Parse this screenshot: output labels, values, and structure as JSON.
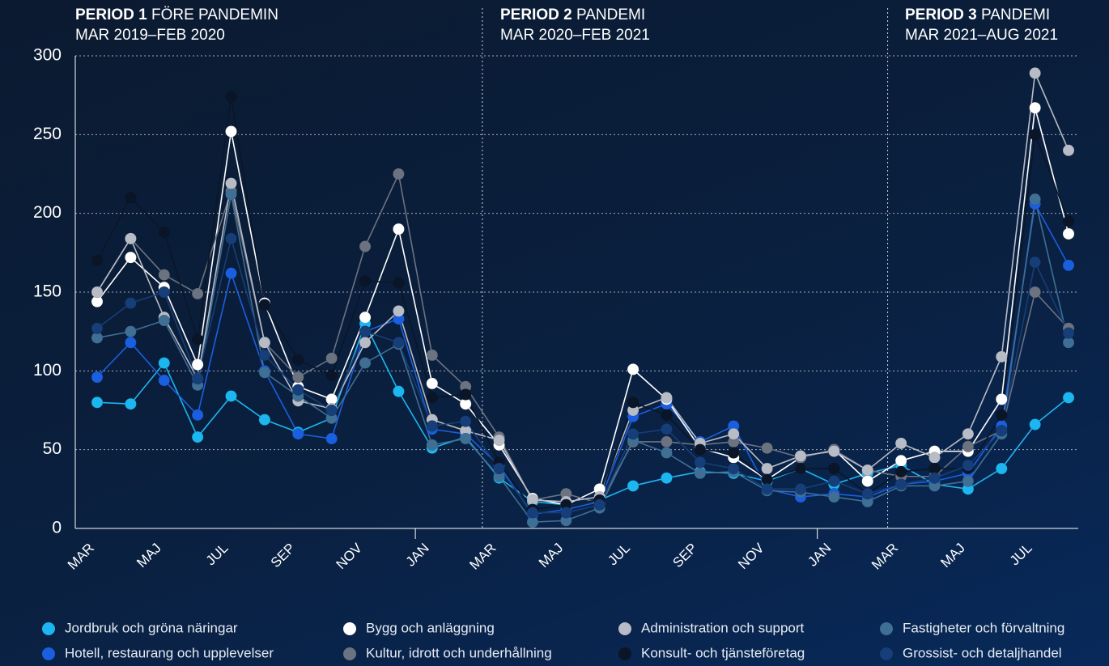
{
  "chart_data": {
    "type": "line",
    "annotations": [
      {
        "label": "PERIOD 1",
        "name": "FÖRE PANDEMIN",
        "range": "MAR 2019–FEB 2020"
      },
      {
        "label": "PERIOD 2",
        "name": "PANDEMI",
        "range": "MAR 2020–FEB 2021"
      },
      {
        "label": "PERIOD 3",
        "name": "PANDEMI",
        "range": "MAR 2021–AUG 2021"
      }
    ],
    "categories": [
      "MAR",
      null,
      "MAJ",
      null,
      "JUL",
      null,
      "SEP",
      null,
      "NOV",
      null,
      "JAN",
      null,
      "MAR",
      null,
      "MAJ",
      null,
      "JUL",
      null,
      "SEP",
      null,
      "NOV",
      null,
      "JAN",
      null,
      "MAR",
      null,
      "MAJ",
      null,
      "JUL",
      null
    ],
    "series": [
      {
        "name": "Jordbruk och gröna näringar",
        "color": "#1cb6f0",
        "values": [
          80,
          79,
          105,
          58,
          84,
          69,
          61,
          70,
          130,
          87,
          51,
          58,
          32,
          17,
          15,
          18,
          27,
          32,
          36,
          35,
          30,
          38,
          28,
          35,
          40,
          28,
          25,
          38,
          66,
          83
        ]
      },
      {
        "name": "Hotell, restaurang och upplevelser",
        "color": "#1a5fe0",
        "values": [
          96,
          118,
          94,
          72,
          162,
          100,
          60,
          57,
          125,
          133,
          63,
          60,
          40,
          9,
          12,
          17,
          71,
          79,
          55,
          65,
          25,
          20,
          22,
          20,
          28,
          30,
          35,
          65,
          206,
          167
        ]
      },
      {
        "name": "Bygg och anläggning",
        "color": "#ffffff",
        "values": [
          144,
          172,
          153,
          104,
          252,
          143,
          90,
          82,
          134,
          190,
          92,
          79,
          53,
          19,
          15,
          25,
          101,
          82,
          51,
          45,
          31,
          45,
          50,
          30,
          43,
          49,
          49,
          82,
          267,
          187
        ]
      },
      {
        "name": "Kultur, idrott och underhållning",
        "color": "#6b7280",
        "values": [
          150,
          184,
          161,
          149,
          214,
          118,
          96,
          108,
          179,
          225,
          110,
          90,
          58,
          18,
          22,
          16,
          55,
          55,
          53,
          55,
          51,
          45,
          50,
          37,
          33,
          33,
          52,
          62,
          150,
          127
        ]
      },
      {
        "name": "Administration och support",
        "color": "#b8bcc6",
        "values": [
          150,
          184,
          134,
          95,
          219,
          118,
          81,
          76,
          118,
          138,
          69,
          62,
          56,
          18,
          17,
          20,
          75,
          83,
          54,
          60,
          38,
          46,
          49,
          37,
          54,
          45,
          60,
          109,
          289,
          240
        ]
      },
      {
        "name": "Konsult- och tjänsteföretag",
        "color": "#0a1628",
        "values": [
          170,
          210,
          188,
          120,
          274,
          142,
          107,
          97,
          157,
          156,
          83,
          85,
          42,
          12,
          15,
          18,
          80,
          72,
          50,
          48,
          31,
          38,
          38,
          22,
          36,
          38,
          38,
          72,
          250,
          195
        ]
      },
      {
        "name": "Fastigheter och förvaltning",
        "color": "#3f6f95",
        "values": [
          121,
          125,
          132,
          91,
          212,
          99,
          84,
          70,
          105,
          117,
          53,
          57,
          33,
          4,
          5,
          13,
          56,
          48,
          35,
          36,
          24,
          23,
          20,
          17,
          27,
          27,
          30,
          60,
          209,
          118
        ]
      },
      {
        "name": "Grossist- och detaljhandel",
        "color": "#163e78",
        "values": [
          127,
          143,
          150,
          95,
          184,
          110,
          88,
          75,
          125,
          118,
          65,
          68,
          38,
          10,
          10,
          15,
          60,
          63,
          42,
          38,
          25,
          25,
          30,
          22,
          28,
          32,
          40,
          62,
          169,
          124
        ]
      }
    ],
    "ylim": [
      0,
      300
    ],
    "yticks": [
      0,
      50,
      100,
      150,
      200,
      250,
      300
    ],
    "grid": true
  }
}
